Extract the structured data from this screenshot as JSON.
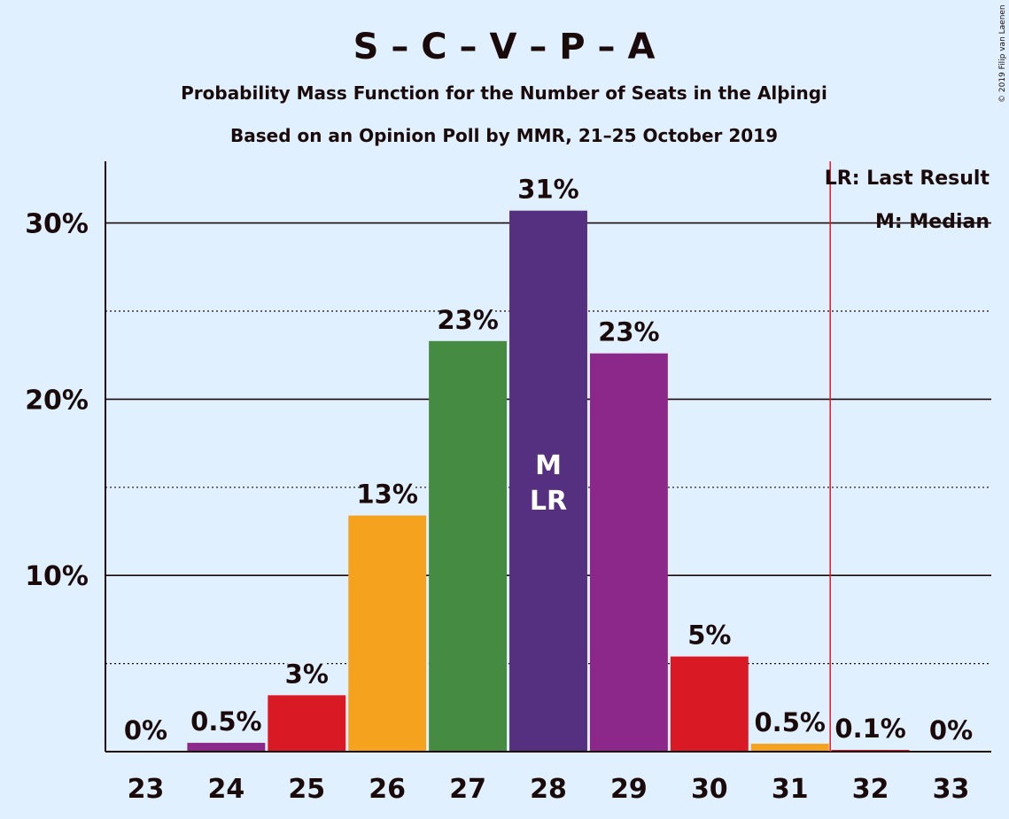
{
  "chart_data": {
    "type": "bar",
    "title": "S – C – V – P – A",
    "subtitle": "Probability Mass Function for the Number of Seats in the Alþingi",
    "subtitle2": "Based on an Opinion Poll by MMR, 21–25 October 2019",
    "copyright": "© 2019 Filip van Laenen",
    "categories": [
      "23",
      "24",
      "25",
      "26",
      "27",
      "28",
      "29",
      "30",
      "31",
      "32",
      "33"
    ],
    "values": [
      0,
      0.5,
      3.2,
      13.4,
      23.3,
      30.7,
      22.6,
      5.4,
      0.45,
      0.1,
      0
    ],
    "data_labels": [
      "0%",
      "0.5%",
      "3%",
      "13%",
      "23%",
      "31%",
      "23%",
      "5%",
      "0.5%",
      "0.1%",
      "0%"
    ],
    "colors": [
      "#e01a24",
      "#8c2a8c",
      "#d91a24",
      "#f5a31e",
      "#458b41",
      "#563080",
      "#8d288b",
      "#d91a24",
      "#f5a31e",
      "#e01a24",
      "#e01a24"
    ],
    "ylim": [
      0,
      33.5
    ],
    "yticks": [
      10,
      20,
      30
    ],
    "ytick_labels": [
      "10%",
      "20%",
      "30%"
    ],
    "median_category": "28",
    "last_result_category": "28",
    "last_result_line_after": "31",
    "bar_marks": {
      "median": "M",
      "last_result": "LR"
    },
    "legend": {
      "last_result": "LR: Last Result",
      "median": "M: Median",
      "placement": "top-right"
    },
    "grid": true
  }
}
